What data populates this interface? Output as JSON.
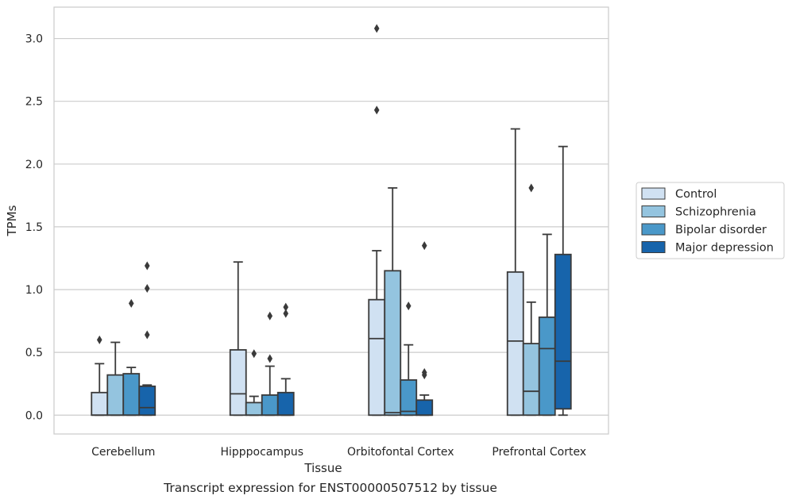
{
  "caption": "Transcript expression for ENST00000507512 by tissue",
  "chart_data": {
    "type": "box",
    "xlabel": "Tissue",
    "ylabel": "TPMs",
    "ylim": [
      -0.15,
      3.25
    ],
    "yticks": [
      0.0,
      0.5,
      1.0,
      1.5,
      2.0,
      2.5,
      3.0
    ],
    "ytick_labels": [
      "0.0",
      "0.5",
      "1.0",
      "1.5",
      "2.0",
      "2.5",
      "3.0"
    ],
    "grid": "horizontal",
    "legend_position": "right",
    "categories": [
      "Cerebellum",
      "Hipppocampus",
      "Orbitofontal Cortex",
      "Prefrontal Cortex"
    ],
    "series": [
      {
        "name": "Control",
        "color": "#d0e1f2",
        "boxes": [
          {
            "whislo": 0.0,
            "q1": 0.0,
            "med": 0.0,
            "q3": 0.18,
            "whishi": 0.41,
            "fliers": [
              0.6
            ]
          },
          {
            "whislo": 0.0,
            "q1": 0.0,
            "med": 0.17,
            "q3": 0.52,
            "whishi": 1.22,
            "fliers": []
          },
          {
            "whislo": 0.0,
            "q1": 0.0,
            "med": 0.61,
            "q3": 0.92,
            "whishi": 1.31,
            "fliers": [
              2.43,
              3.08
            ]
          },
          {
            "whislo": 0.0,
            "q1": 0.0,
            "med": 0.59,
            "q3": 1.14,
            "whishi": 2.28,
            "fliers": []
          }
        ]
      },
      {
        "name": "Schizophrenia",
        "color": "#94c4df",
        "boxes": [
          {
            "whislo": 0.0,
            "q1": 0.0,
            "med": 0.0,
            "q3": 0.32,
            "whishi": 0.58,
            "fliers": []
          },
          {
            "whislo": 0.0,
            "q1": 0.0,
            "med": 0.0,
            "q3": 0.1,
            "whishi": 0.15,
            "fliers": [
              0.49
            ]
          },
          {
            "whislo": 0.0,
            "q1": 0.0,
            "med": 0.02,
            "q3": 1.15,
            "whishi": 1.81,
            "fliers": []
          },
          {
            "whislo": 0.0,
            "q1": 0.0,
            "med": 0.19,
            "q3": 0.57,
            "whishi": 0.9,
            "fliers": [
              1.81
            ]
          }
        ]
      },
      {
        "name": "Bipolar disorder",
        "color": "#4a98c9",
        "boxes": [
          {
            "whislo": 0.0,
            "q1": 0.0,
            "med": 0.0,
            "q3": 0.33,
            "whishi": 0.38,
            "fliers": [
              0.89
            ]
          },
          {
            "whislo": 0.0,
            "q1": 0.0,
            "med": 0.0,
            "q3": 0.16,
            "whishi": 0.39,
            "fliers": [
              0.45,
              0.79
            ]
          },
          {
            "whislo": 0.0,
            "q1": 0.0,
            "med": 0.03,
            "q3": 0.28,
            "whishi": 0.56,
            "fliers": [
              0.87
            ]
          },
          {
            "whislo": 0.0,
            "q1": 0.0,
            "med": 0.53,
            "q3": 0.78,
            "whishi": 1.44,
            "fliers": []
          }
        ]
      },
      {
        "name": "Major depression",
        "color": "#1764ab",
        "boxes": [
          {
            "whislo": 0.0,
            "q1": 0.0,
            "med": 0.06,
            "q3": 0.23,
            "whishi": 0.24,
            "fliers": [
              0.64,
              1.01,
              1.19
            ]
          },
          {
            "whislo": 0.0,
            "q1": 0.0,
            "med": 0.0,
            "q3": 0.18,
            "whishi": 0.29,
            "fliers": [
              0.81,
              0.86
            ]
          },
          {
            "whislo": 0.0,
            "q1": 0.0,
            "med": 0.0,
            "q3": 0.12,
            "whishi": 0.16,
            "fliers": [
              0.32,
              0.34,
              1.35
            ]
          },
          {
            "whislo": 0.0,
            "q1": 0.05,
            "med": 0.43,
            "q3": 1.28,
            "whishi": 2.14,
            "fliers": []
          }
        ]
      }
    ]
  }
}
